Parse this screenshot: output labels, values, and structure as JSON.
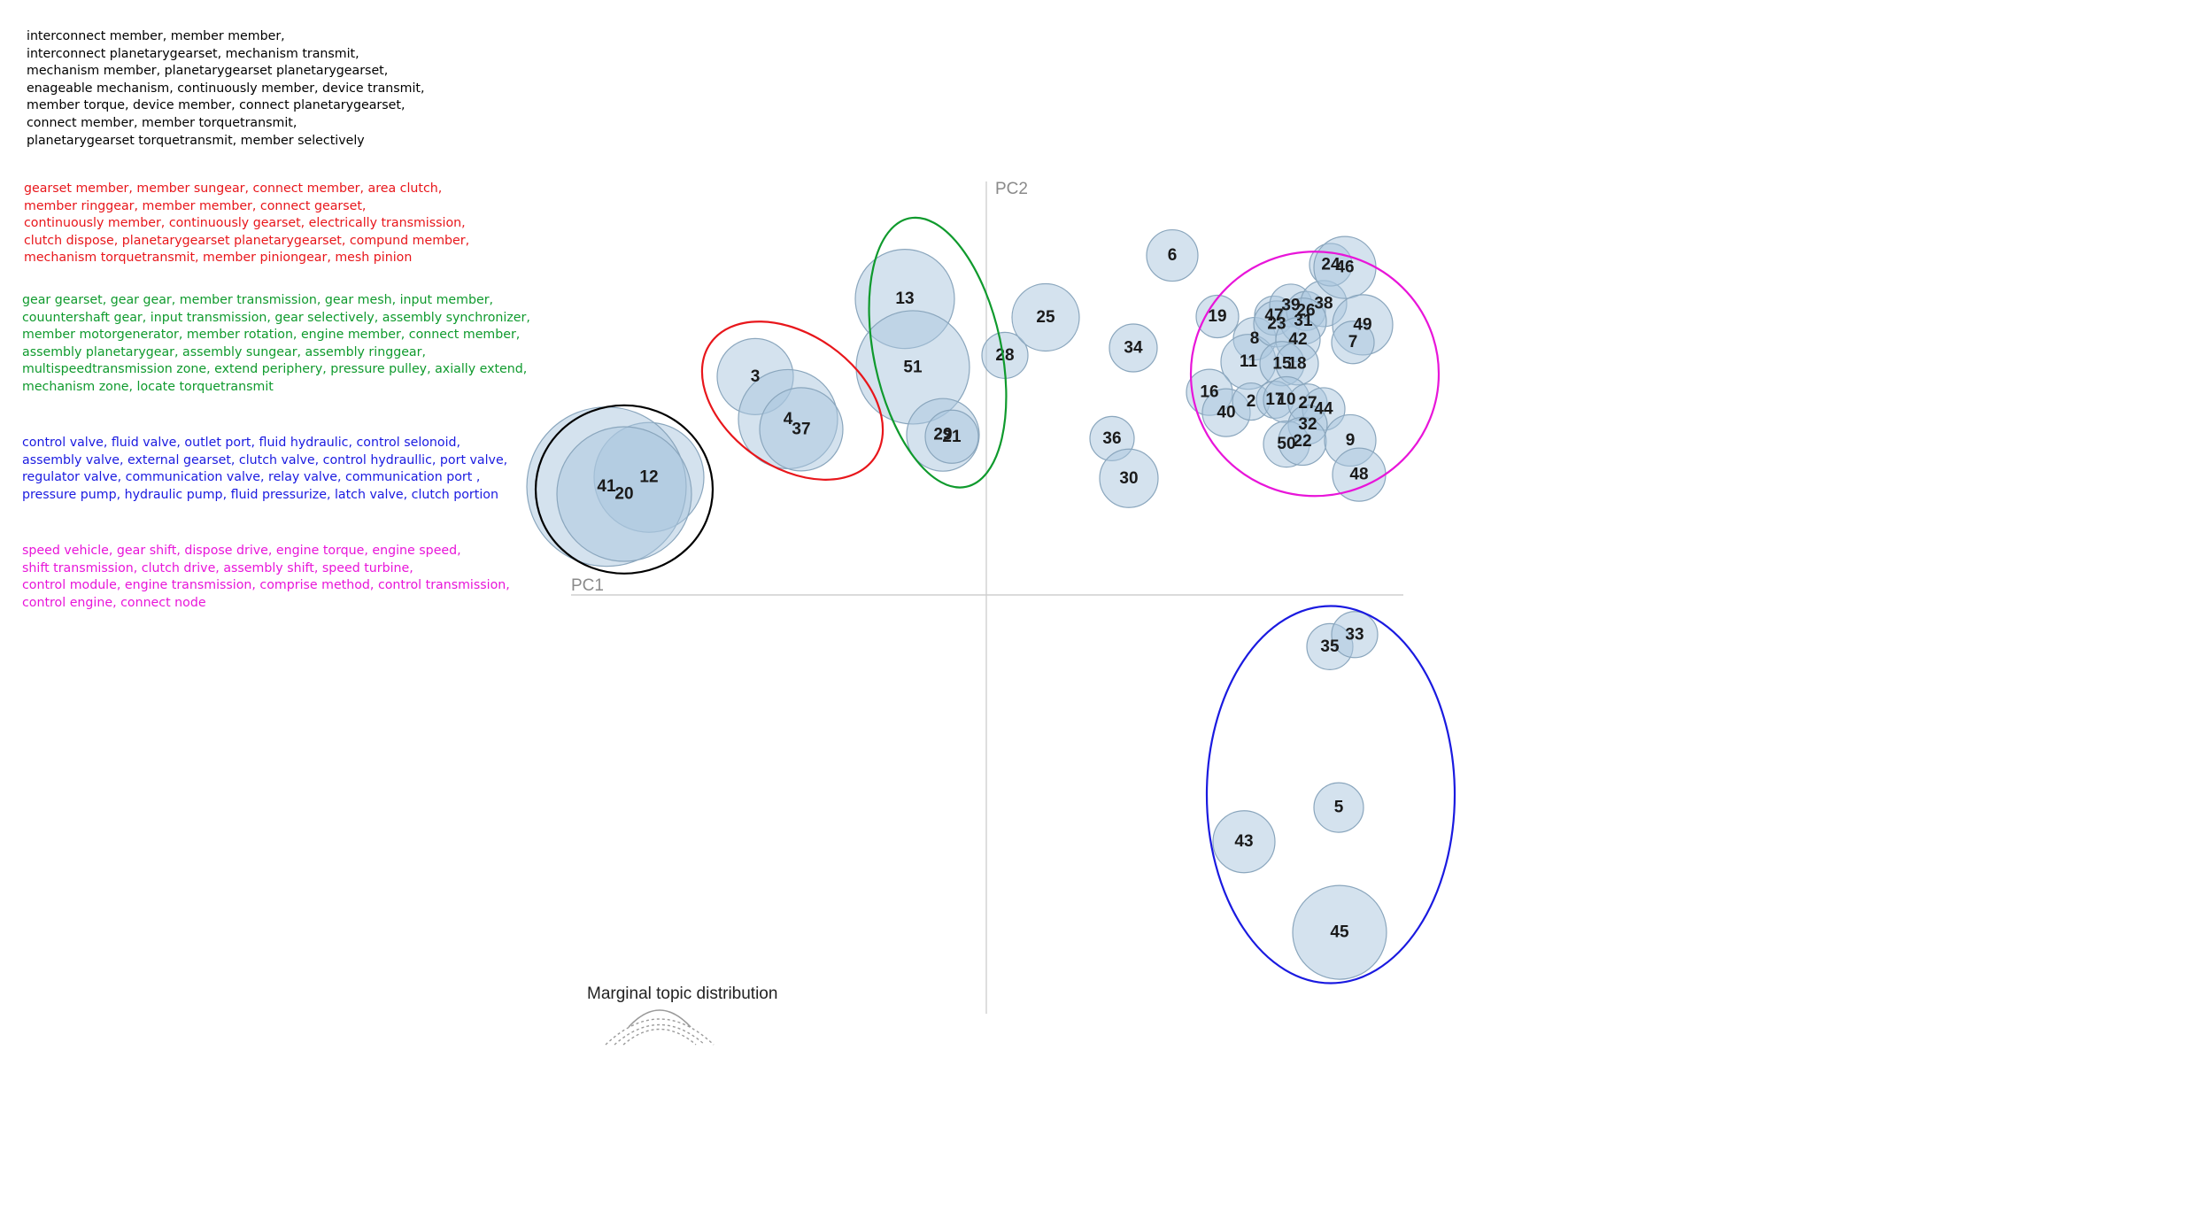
{
  "legend": {
    "black": {
      "color": "#000000",
      "lines": [
        "interconnect member, member member,",
        "interconnect planetarygearset, mechanism transmit,",
        "mechanism member, planetarygearset planetarygearset,",
        "enageable mechanism, continuously member, device transmit,",
        "member torque, device member, connect planetarygearset,",
        "connect member, member torquetransmit,",
        "planetarygearset torquetransmit, member selectively"
      ]
    },
    "red": {
      "color": "#e8161b",
      "lines": [
        "gearset member, member sungear, connect member, area clutch,",
        "member ringgear, member member, connect gearset,",
        "continuously member, continuously gearset, electrically transmission,",
        "clutch dispose, planetarygearset planetarygearset, compund member,",
        "mechanism torquetransmit, member piniongear, mesh pinion"
      ]
    },
    "green": {
      "color": "#0f9a2d",
      "lines": [
        "gear gearset, gear gear, member transmission, gear mesh, input member,",
        "couuntershaft gear, input transmission, gear selectively, assembly synchronizer,",
        "member motorgenerator, member rotation, engine member, connect member,",
        "assembly planetarygear, assembly sungear, assembly ringgear,",
        "multispeedtransmission zone, extend periphery, pressure pulley, axially extend,",
        "mechanism zone, locate torquetransmit"
      ]
    },
    "blue": {
      "color": "#1a1ae0",
      "lines": [
        "control valve, fluid valve, outlet port, fluid hydraulic, control selonoid,",
        "assembly valve, external gearset, clutch valve, control hydraullic, port valve,",
        "regulator valve, communication valve, relay valve, communication port ,",
        "pressure pump, hydraulic pump, fluid pressurize, latch valve, clutch portion"
      ]
    },
    "magenta": {
      "color": "#e815d9",
      "lines": [
        "speed vehicle, gear shift, dispose drive, engine torque, engine speed,",
        "shift transmission, clutch drive, assembly shift, speed turbine,",
        "control module, engine transmission, comprise method, control transmission,",
        "control engine, connect node"
      ]
    }
  },
  "marginal": {
    "title": "Marginal topic distribution"
  },
  "chart_data": {
    "type": "scatter",
    "xlabel": "PC1",
    "ylabel": "PC2",
    "xlim": [
      -0.47,
      0.47
    ],
    "ylim": [
      -0.45,
      0.45
    ],
    "grid": false,
    "point_color": "#a9c6de",
    "points": [
      {
        "label": "12",
        "x": -0.382,
        "y": 0.13,
        "r": 0.062
      },
      {
        "label": "41",
        "x": -0.43,
        "y": 0.12,
        "r": 0.09
      },
      {
        "label": "20",
        "x": -0.41,
        "y": 0.112,
        "r": 0.076
      },
      {
        "label": "3",
        "x": -0.262,
        "y": 0.239,
        "r": 0.043
      },
      {
        "label": "4",
        "x": -0.225,
        "y": 0.193,
        "r": 0.056
      },
      {
        "label": "37",
        "x": -0.21,
        "y": 0.182,
        "r": 0.047
      },
      {
        "label": "13",
        "x": -0.093,
        "y": 0.323,
        "r": 0.056
      },
      {
        "label": "51",
        "x": -0.084,
        "y": 0.249,
        "r": 0.064
      },
      {
        "label": "29",
        "x": -0.05,
        "y": 0.176,
        "r": 0.041
      },
      {
        "label": "21",
        "x": -0.04,
        "y": 0.174,
        "r": 0.03
      },
      {
        "label": "28",
        "x": 0.02,
        "y": 0.262,
        "r": 0.026
      },
      {
        "label": "25",
        "x": 0.066,
        "y": 0.303,
        "r": 0.038
      },
      {
        "label": "34",
        "x": 0.165,
        "y": 0.27,
        "r": 0.027
      },
      {
        "label": "6",
        "x": 0.209,
        "y": 0.37,
        "r": 0.029
      },
      {
        "label": "36",
        "x": 0.141,
        "y": 0.172,
        "r": 0.025
      },
      {
        "label": "30",
        "x": 0.16,
        "y": 0.129,
        "r": 0.033
      },
      {
        "label": "19",
        "x": 0.26,
        "y": 0.304,
        "r": 0.024
      },
      {
        "label": "8",
        "x": 0.302,
        "y": 0.28,
        "r": 0.024
      },
      {
        "label": "11",
        "x": 0.295,
        "y": 0.255,
        "r": 0.031
      },
      {
        "label": "16",
        "x": 0.251,
        "y": 0.222,
        "r": 0.026
      },
      {
        "label": "40",
        "x": 0.27,
        "y": 0.2,
        "r": 0.027
      },
      {
        "label": "2",
        "x": 0.298,
        "y": 0.212,
        "r": 0.021
      },
      {
        "label": "47",
        "x": 0.324,
        "y": 0.305,
        "r": 0.022
      },
      {
        "label": "23",
        "x": 0.327,
        "y": 0.296,
        "r": 0.026
      },
      {
        "label": "39",
        "x": 0.343,
        "y": 0.316,
        "r": 0.024
      },
      {
        "label": "26",
        "x": 0.36,
        "y": 0.31,
        "r": 0.022
      },
      {
        "label": "38",
        "x": 0.38,
        "y": 0.318,
        "r": 0.026
      },
      {
        "label": "31",
        "x": 0.357,
        "y": 0.299,
        "r": 0.026
      },
      {
        "label": "42",
        "x": 0.351,
        "y": 0.279,
        "r": 0.025
      },
      {
        "label": "15",
        "x": 0.333,
        "y": 0.253,
        "r": 0.025
      },
      {
        "label": "18",
        "x": 0.35,
        "y": 0.253,
        "r": 0.024
      },
      {
        "label": "17",
        "x": 0.325,
        "y": 0.214,
        "r": 0.021
      },
      {
        "label": "10",
        "x": 0.338,
        "y": 0.214,
        "r": 0.026
      },
      {
        "label": "27",
        "x": 0.362,
        "y": 0.21,
        "r": 0.022
      },
      {
        "label": "44",
        "x": 0.38,
        "y": 0.204,
        "r": 0.024
      },
      {
        "label": "32",
        "x": 0.362,
        "y": 0.187,
        "r": 0.022
      },
      {
        "label": "50",
        "x": 0.338,
        "y": 0.166,
        "r": 0.026
      },
      {
        "label": "22",
        "x": 0.356,
        "y": 0.169,
        "r": 0.027
      },
      {
        "label": "24",
        "x": 0.388,
        "y": 0.36,
        "r": 0.024
      },
      {
        "label": "46",
        "x": 0.404,
        "y": 0.357,
        "r": 0.035
      },
      {
        "label": "49",
        "x": 0.424,
        "y": 0.295,
        "r": 0.034
      },
      {
        "label": "7",
        "x": 0.413,
        "y": 0.276,
        "r": 0.024
      },
      {
        "label": "9",
        "x": 0.41,
        "y": 0.17,
        "r": 0.029
      },
      {
        "label": "48",
        "x": 0.42,
        "y": 0.133,
        "r": 0.03
      },
      {
        "label": "35",
        "x": 0.387,
        "y": -0.053,
        "r": 0.026
      },
      {
        "label": "33",
        "x": 0.415,
        "y": -0.04,
        "r": 0.026
      },
      {
        "label": "5",
        "x": 0.397,
        "y": -0.227,
        "r": 0.028
      },
      {
        "label": "43",
        "x": 0.29,
        "y": -0.264,
        "r": 0.035
      },
      {
        "label": "45",
        "x": 0.398,
        "y": -0.362,
        "r": 0.053
      }
    ],
    "clusters": [
      {
        "color": "#000000",
        "cx": -0.41,
        "cy": 0.117,
        "rx": 0.1,
        "ry": 0.095,
        "rot": 0
      },
      {
        "color": "#e8161b",
        "cx": -0.22,
        "cy": 0.213,
        "rx": 0.113,
        "ry": 0.075,
        "rot": 35
      },
      {
        "color": "#0f9a2d",
        "cx": -0.056,
        "cy": 0.265,
        "rx": 0.155,
        "ry": 0.072,
        "rot": 78
      },
      {
        "color": "#e815d9",
        "cx": 0.37,
        "cy": 0.242,
        "rx": 0.14,
        "ry": 0.138,
        "rot": 0
      },
      {
        "color": "#1a1ae0",
        "cx": 0.388,
        "cy": -0.213,
        "rx": 0.14,
        "ry": 0.213,
        "rot": 0
      }
    ]
  }
}
